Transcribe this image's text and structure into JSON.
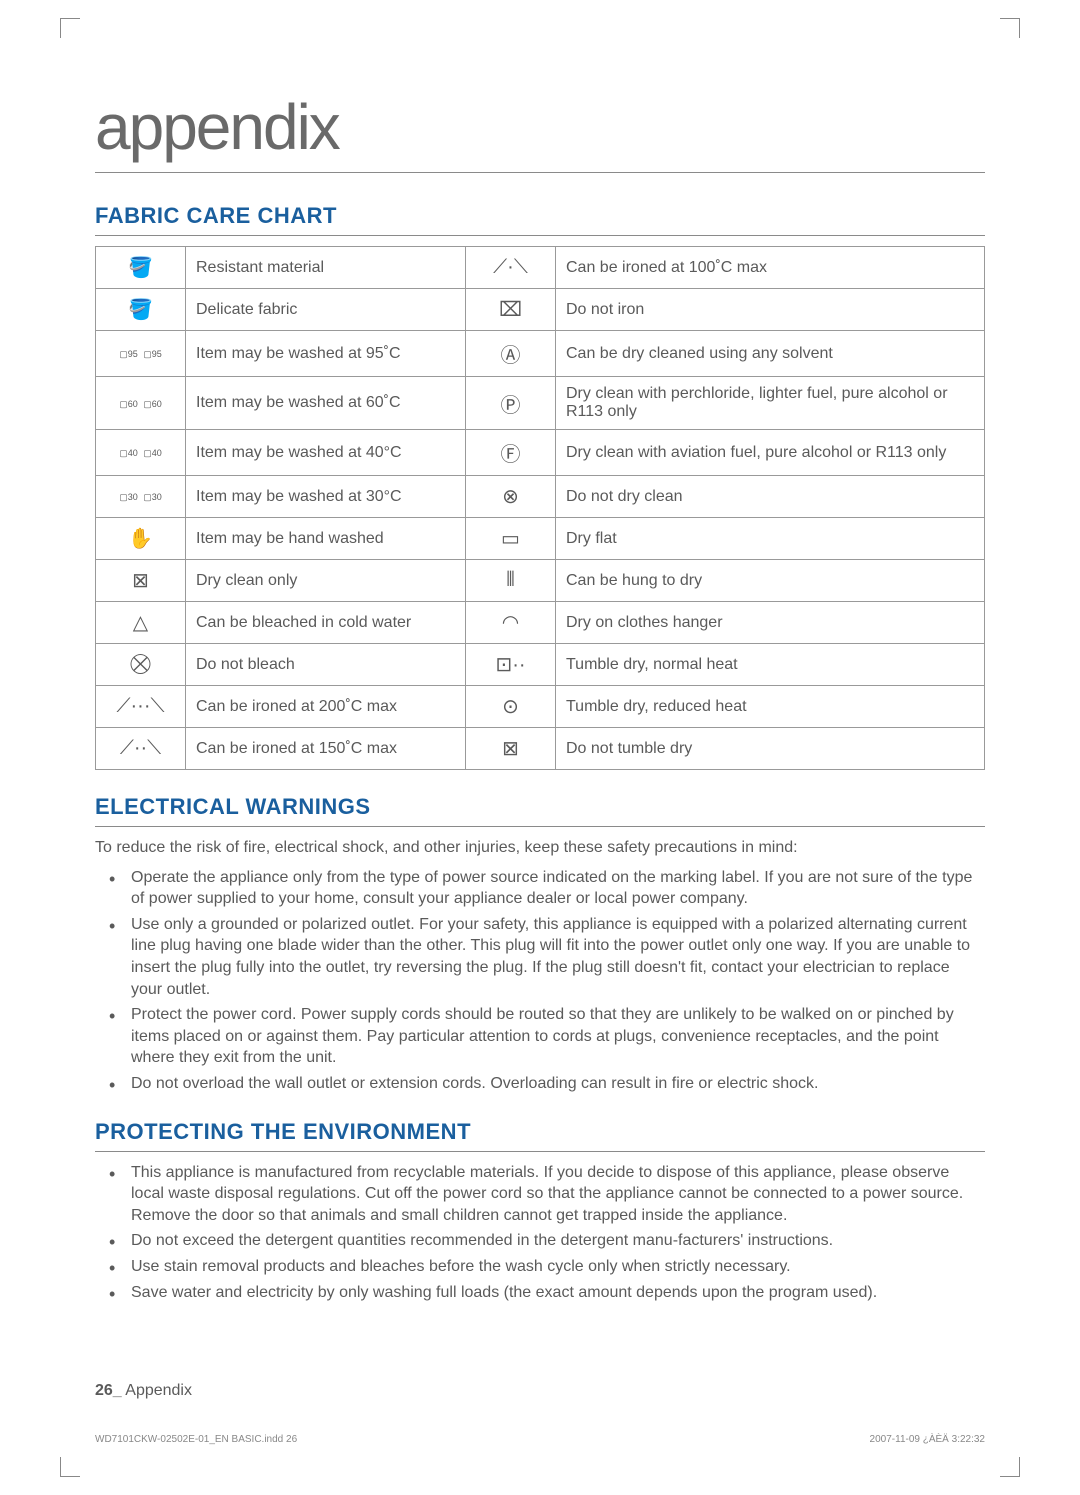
{
  "page": {
    "title": "appendix",
    "footer_page_number": "26_",
    "footer_label": "Appendix",
    "print_meta_left": "WD7101CKW-02502E-01_EN BASIC.indd   26",
    "print_meta_right": "2007-11-09   ¿ÀÈÄ 3:22:32"
  },
  "fabric_chart": {
    "heading": "FABRIC CARE CHART",
    "rows": [
      {
        "icon_l": "🪣",
        "desc_l": "Resistant material",
        "icon_r": "⟋·⟍",
        "desc_r": "Can be ironed at 100˚C max"
      },
      {
        "icon_l": "🪣",
        "desc_l": "Delicate fabric",
        "icon_r": "⌧",
        "desc_r": "Do not iron"
      },
      {
        "icon_l": "95 95",
        "desc_l": "Item may be washed at 95˚C",
        "icon_r": "Ⓐ",
        "desc_r": "Can be dry cleaned using any solvent"
      },
      {
        "icon_l": "60 60",
        "desc_l": "Item may be washed at 60˚C",
        "icon_r": "Ⓟ",
        "desc_r": "Dry clean with perchloride, lighter fuel, pure alcohol or R113 only"
      },
      {
        "icon_l": "40 40",
        "desc_l": "Item may be washed at 40°C",
        "icon_r": "Ⓕ",
        "desc_r": "Dry clean with aviation fuel, pure alcohol or R113 only"
      },
      {
        "icon_l": "30 30",
        "desc_l": "Item may be washed at 30°C",
        "icon_r": "⊗",
        "desc_r": "Do not dry clean"
      },
      {
        "icon_l": "✋",
        "desc_l": "Item may be hand washed",
        "icon_r": "▭",
        "desc_r": "Dry flat"
      },
      {
        "icon_l": "⊠",
        "desc_l": "Dry clean only",
        "icon_r": "⦀",
        "desc_r": "Can be hung to dry"
      },
      {
        "icon_l": "△",
        "desc_l": "Can be bleached in cold water",
        "icon_r": "◠",
        "desc_r": "Dry on clothes hanger"
      },
      {
        "icon_l": "⛒",
        "desc_l": "Do not bleach",
        "icon_r": "⊡··",
        "desc_r": "Tumble dry, normal heat"
      },
      {
        "icon_l": "⟋···⟍",
        "desc_l": "Can be ironed at 200˚C max",
        "icon_r": "⊙",
        "desc_r": "Tumble dry, reduced heat"
      },
      {
        "icon_l": "⟋··⟍",
        "desc_l": "Can be ironed at 150˚C max",
        "icon_r": "⊠",
        "desc_r": "Do not tumble dry"
      }
    ]
  },
  "electrical": {
    "heading": "ELECTRICAL WARNINGS",
    "intro": "To reduce the risk of fire, electrical shock, and other injuries, keep these safety precautions in mind:",
    "items": [
      "Operate the appliance only from the type of power source indicated on the marking label. If you are not sure of the type of power supplied to your home, consult your appliance dealer or local power company.",
      "Use only a grounded or polarized outlet. For your safety, this appliance is equipped with a polarized alternating current line plug having one blade wider than the other. This plug will fit into the power outlet only one way. If you are unable to insert the plug fully into the outlet, try reversing the plug. If the plug still doesn't fit, contact your electrician to replace your outlet.",
      "Protect the power cord. Power supply cords should be routed so that they are unlikely to be walked on or pinched by items placed on or against them. Pay particular attention to cords at plugs, convenience receptacles, and the point where they exit from the unit.",
      "Do not overload the wall outlet or extension cords. Overloading can result in fire or electric shock."
    ]
  },
  "environment": {
    "heading": "PROTECTING THE ENVIRONMENT",
    "items": [
      "This appliance is manufactured from recyclable materials. If you decide to dispose of this appliance, please observe local waste disposal regulations. Cut off the power cord so that the appliance cannot be connected to a power source. Remove the door so that animals and small children cannot get trapped inside the appliance.",
      "Do not exceed the detergent quantities recommended in the detergent manu-facturers' instructions.",
      "Use stain removal products and bleaches before the wash cycle only when strictly necessary.",
      "Save water and electricity by only washing full loads (the exact amount depends upon the program used)."
    ]
  }
}
